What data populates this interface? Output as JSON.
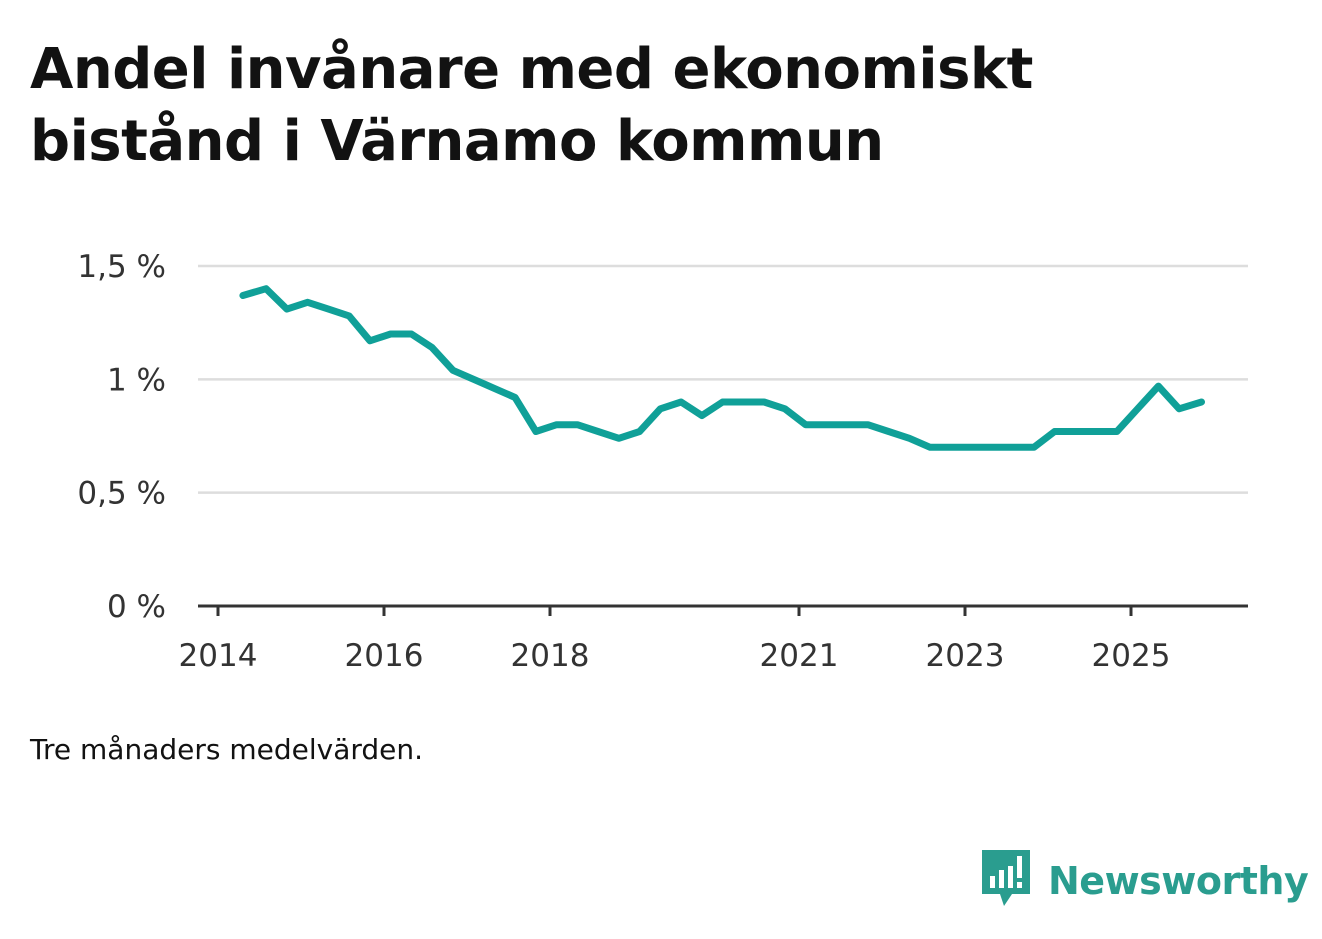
{
  "title": "Andel invånare med ekonomiskt bistånd i Värnamo kommun",
  "note": "Tre månaders medelvärden.",
  "brand": {
    "name": "Newsworthy",
    "icon": "newsworthy-logo-icon",
    "color": "#2a9d8f"
  },
  "colors": {
    "line": "#10a098",
    "grid": "#dddddd",
    "axis": "#333333",
    "text": "#121212"
  },
  "chart_data": {
    "type": "line",
    "title": "Andel invånare med ekonomiskt bistånd i Värnamo kommun",
    "xlabel": "",
    "ylabel": "",
    "xlim": [
      2014,
      2026.2
    ],
    "ylim": [
      0,
      1.5
    ],
    "grid": true,
    "y_ticks": [
      {
        "value": 0,
        "label": "0 %"
      },
      {
        "value": 0.5,
        "label": "0,5 %"
      },
      {
        "value": 1,
        "label": "1 %"
      },
      {
        "value": 1.5,
        "label": "1,5 %"
      }
    ],
    "x_ticks": [
      {
        "value": 2014,
        "label": "2014"
      },
      {
        "value": 2016,
        "label": "2016"
      },
      {
        "value": 2018,
        "label": "2018"
      },
      {
        "value": 2021,
        "label": "2021"
      },
      {
        "value": 2023,
        "label": "2023"
      },
      {
        "value": 2025,
        "label": "2025"
      }
    ],
    "series": [
      {
        "name": "Andel invånare med ekonomiskt bistånd",
        "x": [
          2014.3,
          2014.58,
          2014.83,
          2015.08,
          2015.33,
          2015.58,
          2015.83,
          2016.08,
          2016.33,
          2016.58,
          2016.83,
          2017.08,
          2017.33,
          2017.58,
          2017.83,
          2018.08,
          2018.33,
          2018.58,
          2018.83,
          2019.08,
          2019.33,
          2019.58,
          2019.83,
          2020.08,
          2020.33,
          2020.58,
          2020.83,
          2021.08,
          2021.33,
          2021.58,
          2021.83,
          2022.08,
          2022.33,
          2022.58,
          2022.83,
          2023.08,
          2023.33,
          2023.58,
          2023.83,
          2024.08,
          2024.33,
          2024.58,
          2024.83,
          2025.08,
          2025.33,
          2025.58,
          2025.85
        ],
        "values": [
          1.37,
          1.4,
          1.31,
          1.34,
          1.31,
          1.28,
          1.17,
          1.2,
          1.2,
          1.14,
          1.04,
          1.0,
          0.96,
          0.92,
          0.77,
          0.8,
          0.8,
          0.77,
          0.74,
          0.77,
          0.87,
          0.9,
          0.84,
          0.9,
          0.9,
          0.9,
          0.87,
          0.8,
          0.8,
          0.8,
          0.8,
          0.77,
          0.74,
          0.7,
          0.7,
          0.7,
          0.7,
          0.7,
          0.7,
          0.77,
          0.77,
          0.77,
          0.77,
          0.87,
          0.97,
          0.87,
          0.9
        ]
      }
    ]
  }
}
